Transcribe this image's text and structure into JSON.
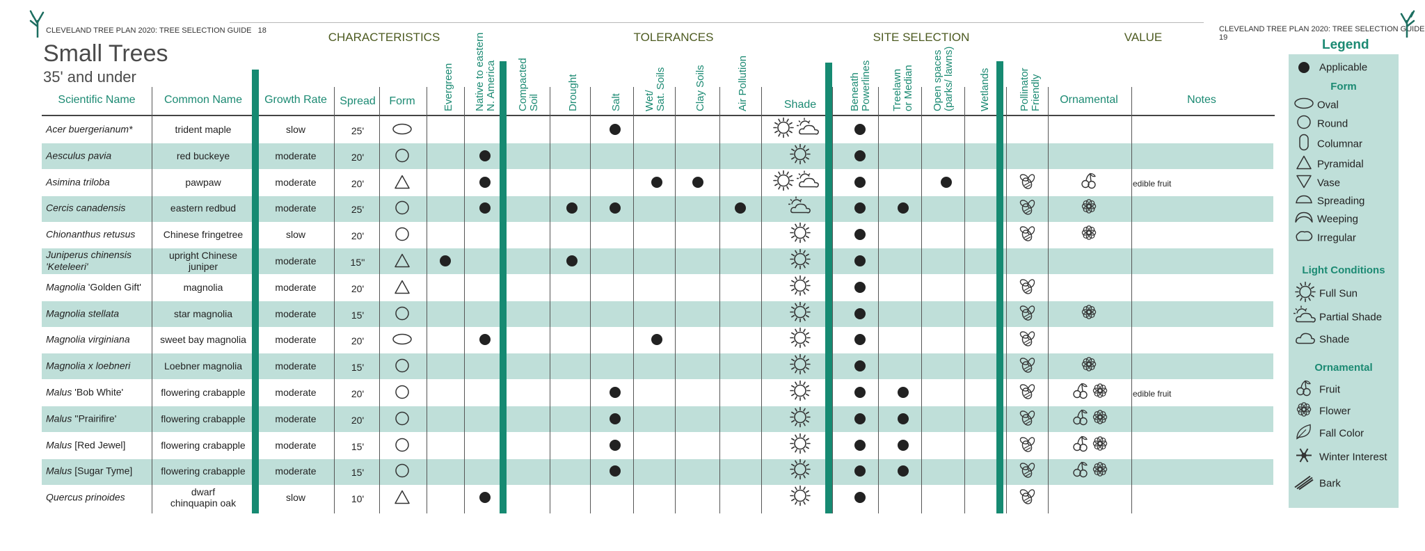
{
  "page": {
    "left_header": "CLEVELAND TREE PLAN 2020: TREE SELECTION GUIDE",
    "left_page_num": "18",
    "right_header": "CLEVELAND TREE PLAN 2020: TREE SELECTION GUIDE",
    "right_page_num": "19",
    "title": "Small Trees",
    "subtitle": "35' and under"
  },
  "groups": [
    "CHARACTERISTICS",
    "TOLERANCES",
    "SITE SELECTION",
    "VALUE"
  ],
  "columns": {
    "scientific": "Scientific Name",
    "common": "Common Name",
    "growth": "Growth Rate",
    "spread": "Spread",
    "form": "Form",
    "evergreen": "Evergreen",
    "native": [
      "Native to eastern",
      "N. America"
    ],
    "compacted": [
      "Compacted",
      "Soil"
    ],
    "drought": "Drought",
    "salt": "Salt",
    "wet": [
      "Wet/",
      "Sat. Soils"
    ],
    "clay": "Clay Soils",
    "air": "Air Pollution",
    "shade": "Shade",
    "powerlines": [
      "Beneath",
      "Powerlines"
    ],
    "treelawn": [
      "Treelawn",
      "or Median"
    ],
    "openspaces": [
      "Open spaces",
      "(parks/ lawns)"
    ],
    "wetlands": "Wetlands",
    "pollinator": [
      "Pollinator",
      "Friendly"
    ],
    "ornamental": "Ornamental",
    "notes": "Notes"
  },
  "rows": [
    {
      "sci": "Acer buergerianum*",
      "sci_rest": "",
      "common": [
        "trident maple"
      ],
      "growth": "slow",
      "spread": "25'",
      "form": "oval",
      "evergreen": false,
      "native": false,
      "compacted": false,
      "drought": false,
      "salt": true,
      "wet": false,
      "clay": false,
      "air": false,
      "light": [
        "full-sun",
        "partial-shade"
      ],
      "powerlines": true,
      "treelawn": false,
      "open": false,
      "wetlands": false,
      "pollinator": false,
      "ornamental": [],
      "notes": ""
    },
    {
      "sci": "Aesculus pavia",
      "sci_rest": "",
      "common": [
        "red buckeye"
      ],
      "growth": "moderate",
      "spread": "20'",
      "form": "round",
      "evergreen": false,
      "native": true,
      "compacted": false,
      "drought": false,
      "salt": false,
      "wet": false,
      "clay": false,
      "air": false,
      "light": [
        "full-sun"
      ],
      "powerlines": true,
      "treelawn": false,
      "open": false,
      "wetlands": false,
      "pollinator": false,
      "ornamental": [],
      "notes": ""
    },
    {
      "sci": "Asimina triloba",
      "sci_rest": "",
      "common": [
        "pawpaw"
      ],
      "growth": "moderate",
      "spread": "20'",
      "form": "pyramidal",
      "evergreen": false,
      "native": true,
      "compacted": false,
      "drought": false,
      "salt": false,
      "wet": true,
      "clay": true,
      "air": false,
      "light": [
        "full-sun",
        "partial-shade"
      ],
      "powerlines": true,
      "treelawn": false,
      "open": true,
      "wetlands": false,
      "pollinator": true,
      "ornamental": [
        "fruit"
      ],
      "notes": "edible fruit"
    },
    {
      "sci": "Cercis canadensis",
      "sci_rest": "",
      "common": [
        "eastern redbud"
      ],
      "growth": "moderate",
      "spread": "25'",
      "form": "round",
      "evergreen": false,
      "native": true,
      "compacted": false,
      "drought": true,
      "salt": true,
      "wet": false,
      "clay": false,
      "air": true,
      "light": [
        "partial-shade"
      ],
      "powerlines": true,
      "treelawn": true,
      "open": false,
      "wetlands": false,
      "pollinator": true,
      "ornamental": [
        "flower"
      ],
      "notes": ""
    },
    {
      "sci": "Chionanthus retusus",
      "sci_rest": "",
      "common": [
        "Chinese fringetree"
      ],
      "growth": "slow",
      "spread": "20'",
      "form": "round",
      "evergreen": false,
      "native": false,
      "compacted": false,
      "drought": false,
      "salt": false,
      "wet": false,
      "clay": false,
      "air": false,
      "light": [
        "full-sun"
      ],
      "powerlines": true,
      "treelawn": false,
      "open": false,
      "wetlands": false,
      "pollinator": true,
      "ornamental": [
        "flower"
      ],
      "notes": ""
    },
    {
      "sci": "Juniperus chinensis",
      "sci2": "'Keteleeri'",
      "sci_rest": "",
      "common": [
        "upright Chinese",
        "juniper"
      ],
      "growth": "moderate",
      "spread": "15''",
      "form": "pyramidal",
      "evergreen": true,
      "native": false,
      "compacted": false,
      "drought": true,
      "salt": false,
      "wet": false,
      "clay": false,
      "air": false,
      "light": [
        "full-sun"
      ],
      "powerlines": true,
      "treelawn": false,
      "open": false,
      "wetlands": false,
      "pollinator": false,
      "ornamental": [],
      "notes": ""
    },
    {
      "sci": "Magnolia",
      "sci_rest": " 'Golden Gift'",
      "common": [
        "magnolia"
      ],
      "growth": "moderate",
      "spread": "20'",
      "form": "pyramidal",
      "evergreen": false,
      "native": false,
      "compacted": false,
      "drought": false,
      "salt": false,
      "wet": false,
      "clay": false,
      "air": false,
      "light": [
        "full-sun"
      ],
      "powerlines": true,
      "treelawn": false,
      "open": false,
      "wetlands": false,
      "pollinator": true,
      "ornamental": [],
      "notes": ""
    },
    {
      "sci": "Magnolia stellata",
      "sci_rest": "",
      "common": [
        "star magnolia"
      ],
      "growth": "moderate",
      "spread": "15'",
      "form": "round",
      "evergreen": false,
      "native": false,
      "compacted": false,
      "drought": false,
      "salt": false,
      "wet": false,
      "clay": false,
      "air": false,
      "light": [
        "full-sun"
      ],
      "powerlines": true,
      "treelawn": false,
      "open": false,
      "wetlands": false,
      "pollinator": true,
      "ornamental": [
        "flower"
      ],
      "notes": ""
    },
    {
      "sci": "Magnolia virginiana",
      "sci_rest": "",
      "common": [
        "sweet bay magnolia"
      ],
      "growth": "moderate",
      "spread": "20'",
      "form": "oval",
      "evergreen": false,
      "native": true,
      "compacted": false,
      "drought": false,
      "salt": false,
      "wet": true,
      "clay": false,
      "air": false,
      "light": [
        "full-sun"
      ],
      "powerlines": true,
      "treelawn": false,
      "open": false,
      "wetlands": false,
      "pollinator": true,
      "ornamental": [],
      "notes": ""
    },
    {
      "sci": "Magnolia x loebneri",
      "sci_rest": "",
      "common": [
        "Loebner magnolia"
      ],
      "growth": "moderate",
      "spread": "15'",
      "form": "round",
      "evergreen": false,
      "native": false,
      "compacted": false,
      "drought": false,
      "salt": false,
      "wet": false,
      "clay": false,
      "air": false,
      "light": [
        "full-sun"
      ],
      "powerlines": true,
      "treelawn": false,
      "open": false,
      "wetlands": false,
      "pollinator": true,
      "ornamental": [
        "flower"
      ],
      "notes": ""
    },
    {
      "sci": "Malus",
      "sci_rest": " 'Bob White'",
      "common": [
        "flowering crabapple"
      ],
      "growth": "moderate",
      "spread": "20'",
      "form": "round",
      "evergreen": false,
      "native": false,
      "compacted": false,
      "drought": false,
      "salt": true,
      "wet": false,
      "clay": false,
      "air": false,
      "light": [
        "full-sun"
      ],
      "powerlines": true,
      "treelawn": true,
      "open": false,
      "wetlands": false,
      "pollinator": true,
      "ornamental": [
        "fruit",
        "flower"
      ],
      "notes": "edible fruit"
    },
    {
      "sci": "Malus",
      "sci_rest": " ''Prairifire'",
      "common": [
        "flowering crabapple"
      ],
      "growth": "moderate",
      "spread": "20'",
      "form": "round",
      "evergreen": false,
      "native": false,
      "compacted": false,
      "drought": false,
      "salt": true,
      "wet": false,
      "clay": false,
      "air": false,
      "light": [
        "full-sun"
      ],
      "powerlines": true,
      "treelawn": true,
      "open": false,
      "wetlands": false,
      "pollinator": true,
      "ornamental": [
        "fruit",
        "flower"
      ],
      "notes": ""
    },
    {
      "sci": "Malus",
      "sci_rest": " [Red Jewel]",
      "common": [
        "flowering crabapple"
      ],
      "growth": "moderate",
      "spread": "15'",
      "form": "round",
      "evergreen": false,
      "native": false,
      "compacted": false,
      "drought": false,
      "salt": true,
      "wet": false,
      "clay": false,
      "air": false,
      "light": [
        "full-sun"
      ],
      "powerlines": true,
      "treelawn": true,
      "open": false,
      "wetlands": false,
      "pollinator": true,
      "ornamental": [
        "fruit",
        "flower"
      ],
      "notes": ""
    },
    {
      "sci": "Malus",
      "sci_rest": " [Sugar Tyme]",
      "common": [
        "flowering crabapple"
      ],
      "growth": "moderate",
      "spread": "15'",
      "form": "round",
      "evergreen": false,
      "native": false,
      "compacted": false,
      "drought": false,
      "salt": true,
      "wet": false,
      "clay": false,
      "air": false,
      "light": [
        "full-sun"
      ],
      "powerlines": true,
      "treelawn": true,
      "open": false,
      "wetlands": false,
      "pollinator": true,
      "ornamental": [
        "fruit",
        "flower"
      ],
      "notes": ""
    },
    {
      "sci": "Quercus prinoides",
      "sci_rest": "",
      "common": [
        "dwarf",
        "chinquapin oak"
      ],
      "growth": "slow",
      "spread": "10'",
      "form": "pyramidal",
      "evergreen": false,
      "native": true,
      "compacted": false,
      "drought": false,
      "salt": false,
      "wet": false,
      "clay": false,
      "air": false,
      "light": [
        "full-sun"
      ],
      "powerlines": true,
      "treelawn": false,
      "open": false,
      "wetlands": false,
      "pollinator": true,
      "ornamental": [],
      "notes": ""
    }
  ],
  "legend": {
    "title": "Legend",
    "applicable": "Applicable",
    "form_head": "Form",
    "forms": [
      {
        "icon": "oval",
        "label": "Oval"
      },
      {
        "icon": "round",
        "label": "Round"
      },
      {
        "icon": "columnar",
        "label": "Columnar"
      },
      {
        "icon": "pyramidal",
        "label": "Pyramidal"
      },
      {
        "icon": "vase",
        "label": "Vase"
      },
      {
        "icon": "spreading",
        "label": "Spreading"
      },
      {
        "icon": "weeping",
        "label": "Weeping"
      },
      {
        "icon": "irregular",
        "label": "Irregular"
      }
    ],
    "light_head": "Light Conditions",
    "lights": [
      {
        "icon": "full-sun",
        "label": "Full Sun"
      },
      {
        "icon": "partial-shade",
        "label": "Partial Shade"
      },
      {
        "icon": "shade",
        "label": "Shade"
      }
    ],
    "orn_head": "Ornamental",
    "ornamentals": [
      {
        "icon": "fruit",
        "label": "Fruit"
      },
      {
        "icon": "flower",
        "label": "Flower"
      },
      {
        "icon": "fall-color",
        "label": "Fall Color"
      },
      {
        "icon": "winter-interest",
        "label": "Winter Interest"
      },
      {
        "icon": "bark",
        "label": "Bark"
      }
    ]
  }
}
